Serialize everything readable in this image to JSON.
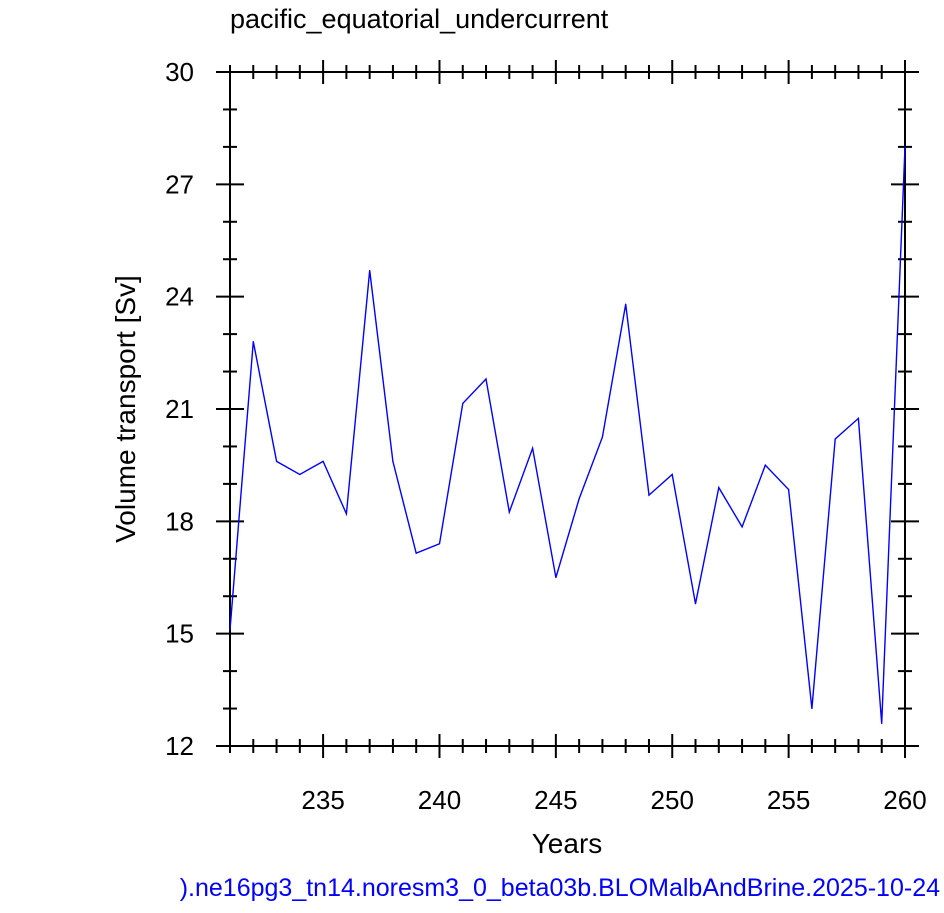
{
  "chart_data": {
    "type": "line",
    "title": "pacific_equatorial_undercurrent",
    "xlabel": "Years",
    "ylabel": "Volume transport [Sv]",
    "xlim": [
      231,
      260
    ],
    "ylim": [
      12,
      30
    ],
    "x_ticks": [
      235,
      240,
      245,
      250,
      255,
      260
    ],
    "y_ticks": [
      12,
      15,
      18,
      21,
      24,
      27,
      30
    ],
    "grid": false,
    "line_color": "#0000ff",
    "series": [
      {
        "x": [
          231,
          232,
          233,
          234,
          235,
          236,
          237,
          238,
          239,
          240,
          241,
          242,
          243,
          244,
          245,
          246,
          247,
          248,
          249,
          250,
          251,
          252,
          253,
          254,
          255,
          256,
          257,
          258,
          259,
          260
        ],
        "y": [
          15.1,
          22.8,
          19.6,
          19.25,
          19.6,
          18.2,
          24.7,
          19.6,
          17.15,
          17.4,
          21.15,
          21.8,
          18.25,
          19.95,
          16.5,
          18.6,
          20.25,
          23.8,
          18.7,
          19.25,
          15.8,
          18.9,
          17.85,
          19.5,
          18.85,
          13.0,
          20.2,
          20.75,
          12.6,
          28.0
        ]
      }
    ]
  },
  "caption": {
    "text": ").ne16pg3_tn14.noresm3_0_beta03b.BLOMalbAndBrine.2025-10-24",
    "color": "#0000ff"
  }
}
